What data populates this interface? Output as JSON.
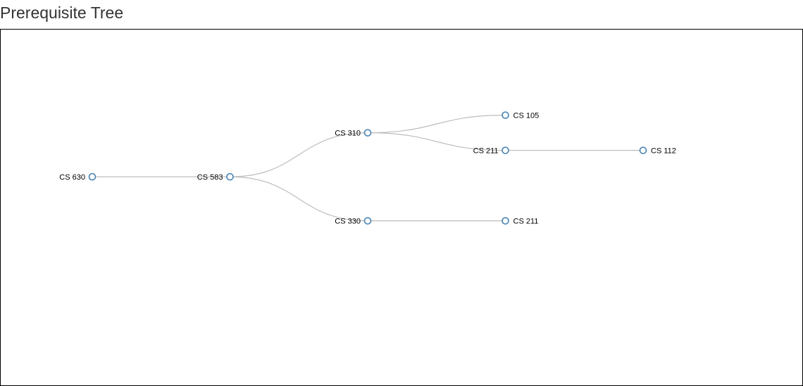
{
  "page": {
    "title": "Prerequisite Tree"
  },
  "colors": {
    "root_label": "#e8100f",
    "label": "#000000",
    "node_stroke": "#4682b4",
    "link": "#bdbdbd"
  },
  "tree": {
    "name": "CS 630",
    "children": [
      {
        "name": "CS 583",
        "children": [
          {
            "name": "CS 310",
            "children": [
              {
                "name": "CS 105",
                "children": []
              },
              {
                "name": "CS 211",
                "children": [
                  {
                    "name": "CS 112",
                    "children": []
                  }
                ]
              }
            ]
          },
          {
            "name": "CS 330",
            "children": [
              {
                "name": "CS 211",
                "children": []
              }
            ]
          }
        ]
      }
    ]
  }
}
